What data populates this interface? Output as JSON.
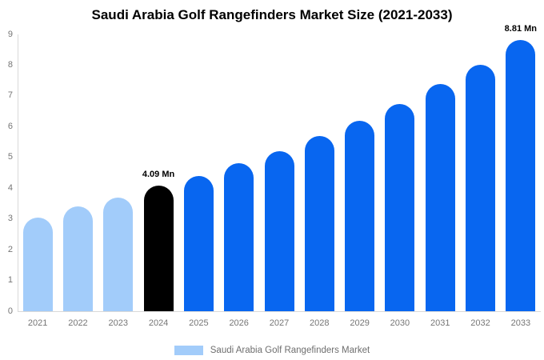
{
  "title": "Saudi Arabia Golf Rangefinders Market Size (2021-2033)",
  "legend": {
    "label": "Saudi Arabia Golf Rangefinders Market",
    "swatch_color": "#A2CCFA"
  },
  "colors": {
    "historical": "#A2CCFA",
    "base_year": "#000000",
    "forecast": "#0866F0",
    "axis_line": "#D9D9D9",
    "tick_text": "#757575",
    "legend_text": "#6E6E6E",
    "annotation_text": "#000000",
    "background": "#FFFFFF"
  },
  "chart_data": {
    "type": "bar",
    "title": "Saudi Arabia Golf Rangefinders Market Size (2021-2033)",
    "categories": [
      "2021",
      "2022",
      "2023",
      "2024",
      "2025",
      "2026",
      "2027",
      "2028",
      "2029",
      "2030",
      "2031",
      "2032",
      "2033"
    ],
    "values": [
      3.05,
      3.4,
      3.7,
      4.09,
      4.4,
      4.8,
      5.2,
      5.7,
      6.2,
      6.75,
      7.4,
      8.0,
      8.81
    ],
    "bar_roles": [
      "historical",
      "historical",
      "historical",
      "base_year",
      "forecast",
      "forecast",
      "forecast",
      "forecast",
      "forecast",
      "forecast",
      "forecast",
      "forecast",
      "forecast"
    ],
    "point_labels": {
      "2024": "4.09 Mn",
      "2033": "8.81 Mn"
    },
    "xlabel": "",
    "ylabel": "",
    "ylim": [
      0,
      9
    ],
    "yticks": [
      0,
      1,
      2,
      3,
      4,
      5,
      6,
      7,
      8,
      9
    ],
    "grid": false,
    "legend_position": "bottom"
  }
}
